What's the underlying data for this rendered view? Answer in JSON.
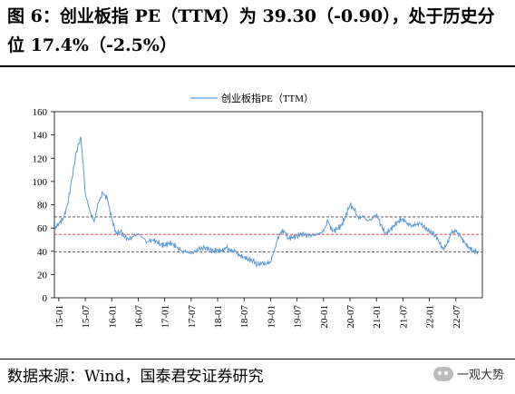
{
  "figure": {
    "title": "图 6：创业板指 PE（TTM）为 39.30（-0.90），处于历史分位 17.4%（-2.5%）",
    "source": "数据来源：Wind，国泰君安证券研究",
    "watermark": "一观大势",
    "watermark_icon": "wechat-icon"
  },
  "chart_data": {
    "type": "line",
    "title": "",
    "xlabel": "",
    "ylabel": "",
    "ylim": [
      0,
      160
    ],
    "yticks": [
      0,
      20,
      40,
      60,
      80,
      100,
      120,
      140,
      160
    ],
    "xticks": [
      "15-01",
      "15-07",
      "16-01",
      "16-07",
      "17-01",
      "17-07",
      "18-01",
      "18-07",
      "19-01",
      "19-07",
      "20-01",
      "20-07",
      "21-01",
      "21-07",
      "22-01",
      "22-07"
    ],
    "legend": "top-center",
    "grid": false,
    "series": [
      {
        "name": "创业板指PE（TTM）",
        "color": "#5b9bd5",
        "points": [
          [
            "2014-12",
            59
          ],
          [
            "2015-01",
            64
          ],
          [
            "2015-02",
            68
          ],
          [
            "2015-03",
            80
          ],
          [
            "2015-04",
            103
          ],
          [
            "2015-05",
            126
          ],
          [
            "2015-06",
            138
          ],
          [
            "2015-06-20",
            110
          ],
          [
            "2015-07",
            90
          ],
          [
            "2015-08",
            75
          ],
          [
            "2015-09",
            65
          ],
          [
            "2015-10",
            82
          ],
          [
            "2015-11",
            90
          ],
          [
            "2015-12",
            85
          ],
          [
            "2016-01",
            68
          ],
          [
            "2016-02",
            55
          ],
          [
            "2016-03",
            57
          ],
          [
            "2016-04",
            52
          ],
          [
            "2016-05",
            50
          ],
          [
            "2016-06",
            53
          ],
          [
            "2016-07",
            55
          ],
          [
            "2016-08",
            52
          ],
          [
            "2016-09",
            48
          ],
          [
            "2016-10",
            50
          ],
          [
            "2016-11",
            49
          ],
          [
            "2016-12",
            46
          ],
          [
            "2017-01",
            45
          ],
          [
            "2017-02",
            47
          ],
          [
            "2017-03",
            46
          ],
          [
            "2017-04",
            43
          ],
          [
            "2017-05",
            40
          ],
          [
            "2017-06",
            40
          ],
          [
            "2017-07",
            38
          ],
          [
            "2017-08",
            40
          ],
          [
            "2017-09",
            42
          ],
          [
            "2017-10",
            43
          ],
          [
            "2017-11",
            42
          ],
          [
            "2017-12",
            40
          ],
          [
            "2018-01",
            41
          ],
          [
            "2018-02",
            40
          ],
          [
            "2018-03",
            43
          ],
          [
            "2018-04",
            40
          ],
          [
            "2018-05",
            40
          ],
          [
            "2018-06",
            36
          ],
          [
            "2018-07",
            35
          ],
          [
            "2018-08",
            33
          ],
          [
            "2018-09",
            32
          ],
          [
            "2018-10",
            28
          ],
          [
            "2018-11",
            30
          ],
          [
            "2018-12",
            29
          ],
          [
            "2019-01",
            31
          ],
          [
            "2019-02",
            43
          ],
          [
            "2019-03",
            55
          ],
          [
            "2019-04",
            58
          ],
          [
            "2019-05",
            51
          ],
          [
            "2019-06",
            52
          ],
          [
            "2019-07",
            53
          ],
          [
            "2019-08",
            55
          ],
          [
            "2019-09",
            54
          ],
          [
            "2019-10",
            54
          ],
          [
            "2019-11",
            54
          ],
          [
            "2019-12",
            55
          ],
          [
            "2020-01",
            57
          ],
          [
            "2020-02",
            66
          ],
          [
            "2020-03",
            57
          ],
          [
            "2020-04",
            59
          ],
          [
            "2020-05",
            62
          ],
          [
            "2020-06",
            70
          ],
          [
            "2020-07",
            80
          ],
          [
            "2020-08",
            75
          ],
          [
            "2020-09",
            68
          ],
          [
            "2020-10",
            70
          ],
          [
            "2020-11",
            66
          ],
          [
            "2020-12",
            68
          ],
          [
            "2021-01",
            72
          ],
          [
            "2021-02",
            63
          ],
          [
            "2021-03",
            55
          ],
          [
            "2021-04",
            58
          ],
          [
            "2021-05",
            62
          ],
          [
            "2021-06",
            66
          ],
          [
            "2021-07",
            68
          ],
          [
            "2021-08",
            64
          ],
          [
            "2021-09",
            62
          ],
          [
            "2021-10",
            63
          ],
          [
            "2021-11",
            64
          ],
          [
            "2021-12",
            60
          ],
          [
            "2022-01",
            57
          ],
          [
            "2022-02",
            55
          ],
          [
            "2022-03",
            50
          ],
          [
            "2022-04",
            42
          ],
          [
            "2022-05",
            46
          ],
          [
            "2022-06",
            56
          ],
          [
            "2022-07",
            57
          ],
          [
            "2022-08",
            53
          ],
          [
            "2022-09",
            47
          ],
          [
            "2022-10",
            43
          ],
          [
            "2022-11",
            40
          ],
          [
            "2022-12",
            39.3
          ]
        ]
      }
    ],
    "reference_lines": [
      {
        "name": "upper",
        "value": 69.5,
        "color": "#404040",
        "style": "dashed"
      },
      {
        "name": "mean",
        "value": 54.5,
        "color": "#e83030",
        "style": "dashed"
      },
      {
        "name": "lower",
        "value": 39.5,
        "color": "#404040",
        "style": "dashed"
      }
    ],
    "x_range": [
      "2014-12",
      "2022-12"
    ]
  }
}
